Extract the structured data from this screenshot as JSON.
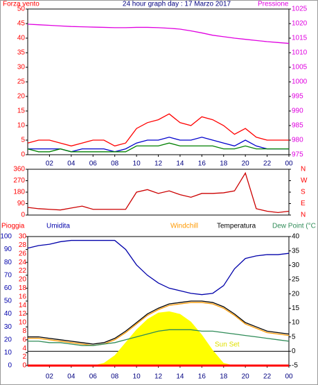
{
  "chart_data": [
    {
      "type": "line",
      "title": "24 hour graph day : 17 Marzo 2017",
      "ylabel": "Forza vento",
      "y2label": "Pressione",
      "x": [
        0,
        1,
        2,
        3,
        4,
        5,
        6,
        7,
        8,
        9,
        10,
        11,
        12,
        13,
        14,
        15,
        16,
        17,
        18,
        19,
        20,
        21,
        22,
        23,
        24
      ],
      "xlim": [
        0,
        24
      ],
      "xticks": [
        {
          "value": 2,
          "label": "02"
        },
        {
          "value": 4,
          "label": "04"
        },
        {
          "value": 6,
          "label": "06"
        },
        {
          "value": 8,
          "label": "08"
        },
        10,
        12,
        14,
        16,
        18,
        20,
        22,
        {
          "value": 24,
          "label": "00"
        }
      ],
      "ylim": [
        0,
        50
      ],
      "yticks": [
        0,
        5,
        10,
        15,
        20,
        25,
        30,
        35,
        40,
        45,
        50
      ],
      "y2lim": [
        975,
        1025
      ],
      "y2ticks": [
        975,
        980,
        985,
        990,
        995,
        1000,
        1005,
        1010,
        1015,
        1020,
        1025
      ],
      "series": [
        {
          "color": "#e000e0",
          "axis": "y2",
          "values": [
            1019.8,
            1019.6,
            1019.4,
            1019.2,
            1019.0,
            1018.9,
            1018.8,
            1018.7,
            1018.6,
            1018.6,
            1018.7,
            1018.7,
            1018.6,
            1018.4,
            1018.1,
            1017.5,
            1016.8,
            1016.0,
            1015.5,
            1015.0,
            1014.6,
            1014.2,
            1013.8,
            1013.5,
            1013.2
          ]
        },
        {
          "color": "#ff0000",
          "values": [
            4,
            5,
            5,
            4,
            3,
            4,
            5,
            5,
            3,
            4,
            9,
            11,
            12,
            14,
            11,
            10,
            13,
            12,
            10,
            7,
            9,
            6,
            5,
            5,
            5
          ]
        },
        {
          "color": "#0000cc",
          "values": [
            2,
            2,
            2,
            2,
            1,
            2,
            2,
            2,
            1,
            2,
            4,
            5,
            5,
            6,
            5,
            5,
            6,
            5,
            4,
            3,
            5,
            3,
            2,
            2,
            2
          ]
        },
        {
          "color": "#008000",
          "values": [
            2,
            1,
            1,
            2,
            1,
            1,
            1,
            1,
            1,
            1,
            3,
            3,
            3,
            4,
            3,
            3,
            3,
            3,
            2,
            2,
            3,
            2,
            2,
            2,
            2
          ]
        }
      ]
    },
    {
      "type": "line",
      "x": [
        0,
        1,
        2,
        3,
        4,
        5,
        6,
        7,
        8,
        9,
        10,
        11,
        12,
        13,
        14,
        15,
        16,
        17,
        18,
        19,
        20,
        21,
        22,
        23,
        24
      ],
      "xlim": [
        0,
        24
      ],
      "ylim": [
        0,
        360
      ],
      "yticks": [
        0,
        90,
        180,
        270,
        360
      ],
      "y2lim": [
        0,
        360
      ],
      "y2ticks": [
        {
          "value": 0,
          "label": "N"
        },
        {
          "value": 90,
          "label": "E"
        },
        {
          "value": 180,
          "label": "S"
        },
        {
          "value": 270,
          "label": "W"
        },
        {
          "value": 360,
          "label": "N"
        }
      ],
      "series": [
        {
          "color": "#cc0000",
          "values": [
            60,
            50,
            45,
            40,
            55,
            70,
            45,
            45,
            45,
            45,
            180,
            200,
            170,
            190,
            160,
            140,
            170,
            170,
            175,
            190,
            330,
            50,
            30,
            20,
            30
          ]
        }
      ]
    },
    {
      "type": "line",
      "x": [
        0,
        1,
        2,
        3,
        4,
        5,
        6,
        7,
        8,
        9,
        10,
        11,
        12,
        13,
        14,
        15,
        16,
        17,
        18,
        19,
        20,
        21,
        22,
        23,
        24
      ],
      "xlim": [
        0,
        24
      ],
      "xticks": [
        {
          "value": 2,
          "label": "02"
        },
        {
          "value": 4,
          "label": "04"
        },
        {
          "value": 6,
          "label": "06"
        },
        {
          "value": 8,
          "label": "08"
        },
        10,
        12,
        14,
        16,
        18,
        20,
        22,
        {
          "value": 24,
          "label": "00"
        }
      ],
      "ylim": [
        0,
        100
      ],
      "yticks": [
        0,
        10,
        20,
        30,
        40,
        50,
        60,
        70,
        80,
        90,
        100
      ],
      "y3lim": [
        0,
        30
      ],
      "y3ticks": [
        0,
        2,
        4,
        6,
        8,
        10,
        12,
        14,
        16,
        18,
        20,
        22,
        24,
        26,
        28,
        30
      ],
      "y2lim": [
        -5,
        40
      ],
      "y2ticks": [
        -5,
        0,
        5,
        10,
        15,
        20,
        25,
        30,
        35,
        40
      ],
      "annotation": "Sun Set",
      "series": [
        {
          "color": "#ffff00",
          "axis": "y",
          "values": [
            0,
            0,
            0,
            0,
            0,
            0,
            0,
            2,
            8,
            18,
            28,
            36,
            41,
            42,
            40,
            34,
            24,
            12,
            2,
            0,
            0,
            0,
            0,
            0,
            0
          ]
        },
        {
          "name": "Pioggia",
          "color": "#ff0000",
          "axis": "y3",
          "values": [
            0,
            0,
            0,
            0,
            0,
            0,
            0,
            0,
            0,
            0,
            0,
            0,
            0,
            0,
            0,
            0,
            0,
            0,
            0,
            0,
            0,
            0,
            0,
            0,
            0
          ]
        },
        {
          "name": "Umidita",
          "color": "#0000aa",
          "axis": "y",
          "values": [
            91,
            93,
            94,
            96,
            97,
            97,
            97,
            97,
            97,
            90,
            78,
            70,
            64,
            60,
            58,
            56,
            55,
            56,
            62,
            75,
            83,
            85,
            86,
            86,
            87
          ]
        },
        {
          "name": "Windchill",
          "color": "#ff9900",
          "axis": "y2",
          "values": [
            4.5,
            4.5,
            4,
            3.5,
            3,
            2.5,
            2,
            2.5,
            4,
            6.5,
            9.5,
            12.5,
            14.5,
            16,
            16.5,
            17,
            17,
            16.5,
            15,
            12.5,
            9.5,
            8,
            6.5,
            6,
            5.5
          ]
        },
        {
          "name": "Temperatura",
          "color": "#000000",
          "axis": "y2",
          "values": [
            5,
            5,
            4.5,
            4,
            3.5,
            3,
            2.5,
            3,
            4.5,
            7,
            10,
            13,
            15,
            16.5,
            17,
            17.5,
            17.5,
            17,
            15.5,
            13,
            10,
            8.5,
            7,
            6.5,
            6
          ]
        },
        {
          "name": "Dew Point (°C",
          "color": "#2e8b57",
          "axis": "y2",
          "values": [
            3.5,
            3.5,
            3,
            3,
            2.5,
            2,
            2,
            2.5,
            3,
            4,
            5,
            6,
            7,
            7.5,
            7.5,
            7.5,
            7,
            7,
            6.5,
            6,
            5.5,
            5,
            4.5,
            4,
            3.5
          ]
        }
      ]
    }
  ]
}
